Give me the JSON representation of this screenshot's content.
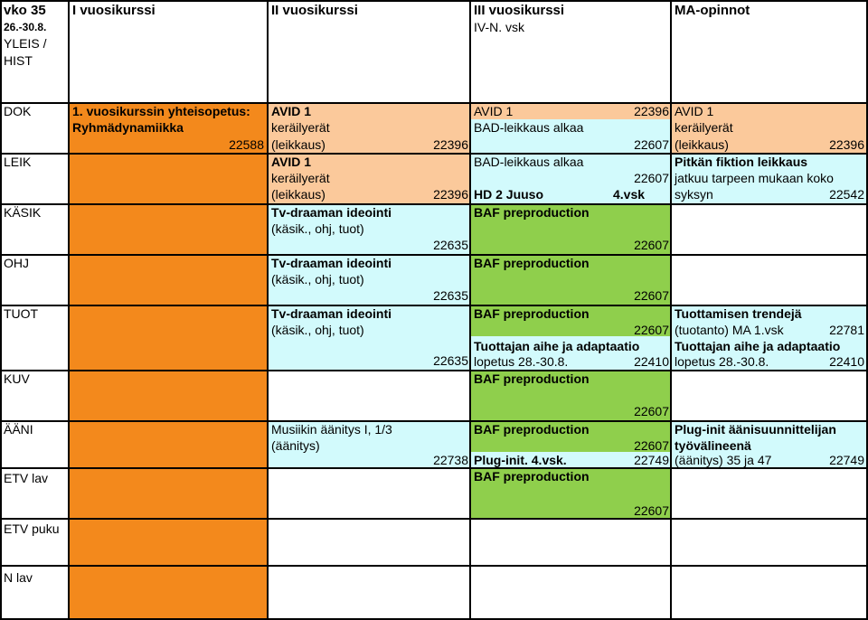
{
  "header": {
    "week": "vko 35",
    "dates": "26.-30.8.",
    "col1": "I vuosikurssi",
    "col2": "II vuosikurssi",
    "col3": "III vuosikurssi",
    "col3_sub": "IV-N. vsk",
    "col4": "MA-opinnot"
  },
  "rows": {
    "yleis": "YLEIS /",
    "hist": "HIST",
    "dok": "DOK",
    "leik": "LEIK",
    "kasik": "KÄSIK",
    "ohj": "OHJ",
    "tuot": "TUOT",
    "kuv": "KUV",
    "aani": "ÄÄNI",
    "etv_lav": "ETV lav",
    "etv_puku": "ETV puku",
    "n_lav": "N lav"
  },
  "orange": {
    "line1": "1. vuosikurssin yhteisopetus:",
    "line2": "Ryhmädynamiikka",
    "code": "22588"
  },
  "dok_c2": {
    "line1": "AVID 1",
    "line2": "keräilyerät",
    "line3": "(leikkaus)",
    "code": "22396"
  },
  "dok_c3": {
    "line1": "AVID 1",
    "code1": "22396",
    "line2": "BAD-leikkaus alkaa",
    "code2": "22607"
  },
  "dok_c4": {
    "line1": "AVID 1",
    "line2": "keräilyerät",
    "line3": "(leikkaus)",
    "code": "22396"
  },
  "leik_c2": {
    "line1": "AVID 1",
    "line2": "keräilyerät",
    "line3": "(leikkaus)",
    "code": "22396"
  },
  "leik_c3": {
    "line1": "BAD-leikkaus alkaa",
    "code1": "22607",
    "line2": "HD 2 Juuso",
    "line2b": "4.vsk"
  },
  "leik_c4": {
    "line1": "Pitkän fiktion leikkaus",
    "line2": "jatkuu tarpeen mukaan koko",
    "line3": "syksyn",
    "code": "22542"
  },
  "tv": {
    "line1": "Tv-draaman ideointi",
    "line2": "(käsik., ohj, tuot)",
    "code": "22635"
  },
  "baf": {
    "line1": "BAF preproduction",
    "code": "22607"
  },
  "tuot_c3b": {
    "line1": "Tuottajan aihe ja adaptaatio",
    "line2": "lopetus 28.-30.8.",
    "code": "22410"
  },
  "tuot_c4": {
    "line1": "Tuottamisen trendejä",
    "line2": "(tuotanto) MA 1.vsk",
    "code": "22781"
  },
  "tuot_c4b": {
    "line1": "Tuottajan aihe ja adaptaatio",
    "line2": "lopetus 28.-30.8.",
    "code": "22410"
  },
  "aani_c2": {
    "line1": "Musiikin äänitys I, 1/3",
    "line2": "(äänitys)",
    "code": "22738"
  },
  "aani_c3b": {
    "line1": "Plug-init. 4.vsk.",
    "code": "22749"
  },
  "aani_c4": {
    "line1": "Plug-init äänisuunnittelijan",
    "line2": "työvälineenä",
    "line3": "(äänitys) 35 ja 47",
    "code": "22749"
  },
  "colors": {
    "peach": "#fbc99b",
    "orange": "#f3891c",
    "cyan": "#d2fafc",
    "green": "#8fcf4c"
  }
}
